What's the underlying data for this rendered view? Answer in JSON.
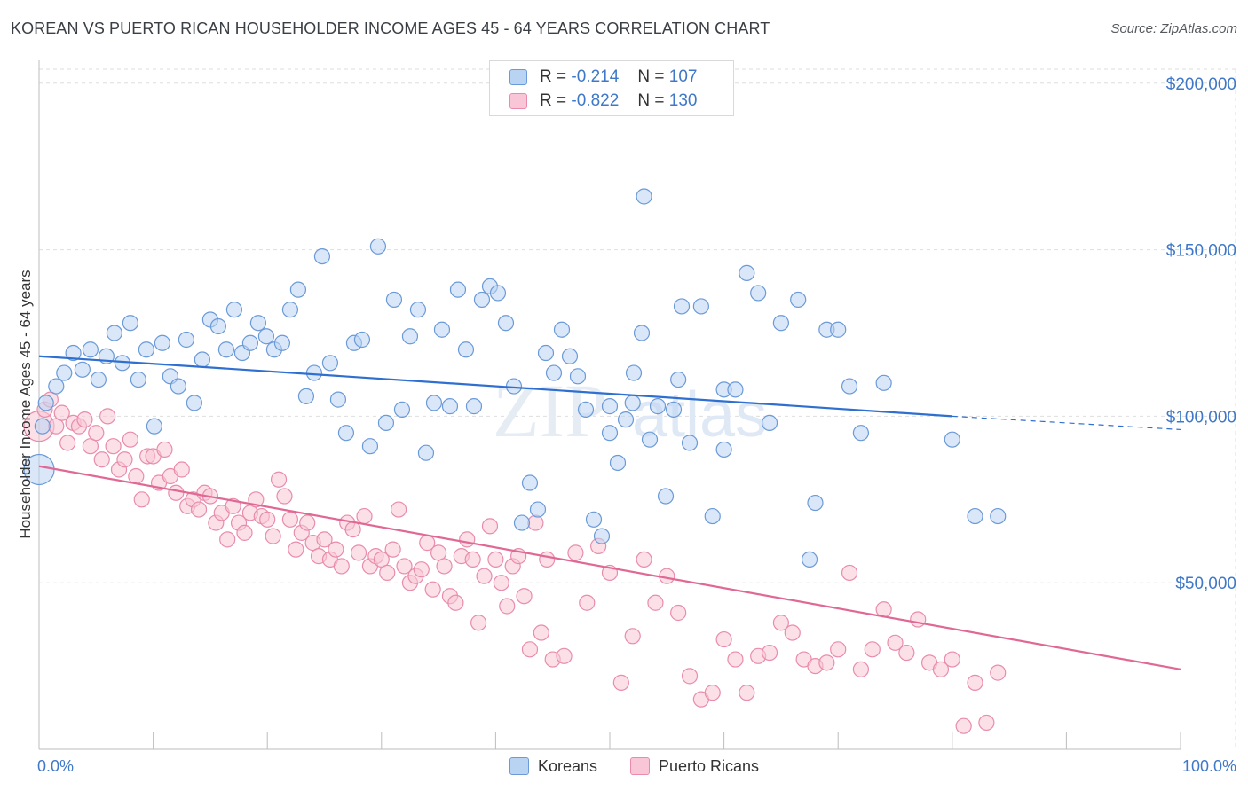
{
  "title": "KOREAN VS PUERTO RICAN HOUSEHOLDER INCOME AGES 45 - 64 YEARS CORRELATION CHART",
  "source": "Source: ZipAtlas.com",
  "legend_stats": {
    "korean": {
      "r_label": "R =",
      "r_value": "-0.214",
      "n_label": "N =",
      "n_value": "107"
    },
    "puerto_rican": {
      "r_label": "R =",
      "r_value": "-0.822",
      "n_label": "N =",
      "n_value": "130"
    }
  },
  "bottom_legend": {
    "korean": "Koreans",
    "puerto_rican": "Puerto Ricans"
  },
  "colors": {
    "blue_line": "#2f6fcf",
    "blue_fill": "#b9d3f3",
    "blue_stroke": "#6b9ad8",
    "pink_line": "#e06895",
    "pink_fill": "#f8c6d6",
    "pink_stroke": "#e98cab",
    "grid": "#dedede",
    "axis_text": "#3f78c8"
  },
  "watermark": {
    "zip": "ZIP",
    "atlas": "atlas"
  },
  "chart_data": {
    "type": "scatter",
    "title": "KOREAN VS PUERTO RICAN HOUSEHOLDER INCOME AGES 45 - 64 YEARS CORRELATION CHART",
    "xlabel": "",
    "ylabel": "Householder Income Ages 45 - 64 years",
    "xlim": [
      0,
      100
    ],
    "ylim": [
      0,
      205000
    ],
    "x_tick_labels": [
      "0.0%",
      "100.0%"
    ],
    "y_ticks": [
      50000,
      100000,
      150000,
      200000
    ],
    "y_tick_labels": [
      "$50,000",
      "$100,000",
      "$150,000",
      "$200,000"
    ],
    "series": [
      {
        "name": "Koreans",
        "trend": {
          "x0": 0,
          "y0": 118000,
          "x1": 80,
          "y1": 100000,
          "dashed_to": 100,
          "dashed_y": 96000
        },
        "points": [
          [
            0,
            84
          ],
          [
            0.3,
            97
          ],
          [
            0.6,
            104
          ],
          [
            1.5,
            109
          ],
          [
            2.2,
            113
          ],
          [
            3,
            119
          ],
          [
            3.8,
            114
          ],
          [
            4.5,
            120
          ],
          [
            5.2,
            111
          ],
          [
            5.9,
            118
          ],
          [
            6.6,
            125
          ],
          [
            7.3,
            116
          ],
          [
            8,
            128
          ],
          [
            8.7,
            111
          ],
          [
            9.4,
            120
          ],
          [
            10.1,
            97
          ],
          [
            10.8,
            122
          ],
          [
            11.5,
            112
          ],
          [
            12.2,
            109
          ],
          [
            12.9,
            123
          ],
          [
            13.6,
            104
          ],
          [
            14.3,
            117
          ],
          [
            15,
            129
          ],
          [
            15.7,
            127
          ],
          [
            16.4,
            120
          ],
          [
            17.1,
            132
          ],
          [
            17.8,
            119
          ],
          [
            18.5,
            122
          ],
          [
            19.2,
            128
          ],
          [
            19.9,
            124
          ],
          [
            20.6,
            120
          ],
          [
            21.3,
            122
          ],
          [
            22,
            132
          ],
          [
            22.7,
            138
          ],
          [
            23.4,
            106
          ],
          [
            24.1,
            113
          ],
          [
            24.8,
            148
          ],
          [
            25.5,
            116
          ],
          [
            26.2,
            105
          ],
          [
            26.9,
            95
          ],
          [
            27.6,
            122
          ],
          [
            28.3,
            123
          ],
          [
            29,
            91
          ],
          [
            29.7,
            151
          ],
          [
            30.4,
            98
          ],
          [
            31.1,
            135
          ],
          [
            31.8,
            102
          ],
          [
            32.5,
            124
          ],
          [
            33.2,
            132
          ],
          [
            33.9,
            89
          ],
          [
            34.6,
            104
          ],
          [
            35.3,
            126
          ],
          [
            36,
            103
          ],
          [
            36.7,
            138
          ],
          [
            37.4,
            120
          ],
          [
            38.1,
            103
          ],
          [
            38.8,
            135
          ],
          [
            39.5,
            139
          ],
          [
            40.2,
            137
          ],
          [
            40.9,
            128
          ],
          [
            41.6,
            109
          ],
          [
            42.3,
            68
          ],
          [
            43,
            80
          ],
          [
            43.7,
            72
          ],
          [
            44.4,
            119
          ],
          [
            45.1,
            113
          ],
          [
            45.8,
            126
          ],
          [
            46.5,
            118
          ],
          [
            47.2,
            112
          ],
          [
            47.9,
            102
          ],
          [
            48.6,
            69
          ],
          [
            49.3,
            64
          ],
          [
            50,
            95
          ],
          [
            50.7,
            86
          ],
          [
            51.4,
            99
          ],
          [
            52.1,
            113
          ],
          [
            52.8,
            125
          ],
          [
            53.5,
            93
          ],
          [
            54.2,
            103
          ],
          [
            54.9,
            76
          ],
          [
            55.6,
            102
          ],
          [
            56.3,
            133
          ],
          [
            57,
            92
          ],
          [
            58,
            133
          ],
          [
            59,
            70
          ],
          [
            60,
            108
          ],
          [
            61,
            108
          ],
          [
            62,
            143
          ],
          [
            63,
            137
          ],
          [
            64,
            98
          ],
          [
            65,
            128
          ],
          [
            66.5,
            135
          ],
          [
            67.5,
            57
          ],
          [
            68,
            74
          ],
          [
            69,
            126
          ],
          [
            70,
            126
          ],
          [
            71,
            109
          ],
          [
            72,
            95
          ],
          [
            74,
            110
          ],
          [
            80,
            93
          ],
          [
            82,
            70
          ],
          [
            84,
            70
          ],
          [
            50,
            103
          ],
          [
            52,
            104
          ],
          [
            53,
            166
          ],
          [
            56,
            111
          ],
          [
            60,
            90
          ]
        ]
      },
      {
        "name": "Puerto Ricans",
        "trend": {
          "x0": 0,
          "y0": 85000,
          "x1": 100,
          "y1": 24000
        },
        "points": [
          [
            0,
            97
          ],
          [
            0.5,
            102
          ],
          [
            1,
            105
          ],
          [
            1.5,
            97
          ],
          [
            2,
            101
          ],
          [
            2.5,
            92
          ],
          [
            3,
            98
          ],
          [
            3.5,
            97
          ],
          [
            4,
            99
          ],
          [
            4.5,
            91
          ],
          [
            5,
            95
          ],
          [
            5.5,
            87
          ],
          [
            6,
            100
          ],
          [
            6.5,
            91
          ],
          [
            7,
            84
          ],
          [
            7.5,
            87
          ],
          [
            8,
            93
          ],
          [
            8.5,
            82
          ],
          [
            9,
            75
          ],
          [
            9.5,
            88
          ],
          [
            10,
            88
          ],
          [
            10.5,
            80
          ],
          [
            11,
            90
          ],
          [
            11.5,
            82
          ],
          [
            12,
            77
          ],
          [
            12.5,
            84
          ],
          [
            13,
            73
          ],
          [
            13.5,
            75
          ],
          [
            14,
            72
          ],
          [
            14.5,
            77
          ],
          [
            15,
            76
          ],
          [
            15.5,
            68
          ],
          [
            16,
            71
          ],
          [
            16.5,
            63
          ],
          [
            17,
            73
          ],
          [
            17.5,
            68
          ],
          [
            18,
            65
          ],
          [
            18.5,
            71
          ],
          [
            19,
            75
          ],
          [
            19.5,
            70
          ],
          [
            20,
            69
          ],
          [
            20.5,
            64
          ],
          [
            21,
            81
          ],
          [
            21.5,
            76
          ],
          [
            22,
            69
          ],
          [
            22.5,
            60
          ],
          [
            23,
            65
          ],
          [
            23.5,
            68
          ],
          [
            24,
            62
          ],
          [
            24.5,
            58
          ],
          [
            25,
            63
          ],
          [
            25.5,
            57
          ],
          [
            26,
            60
          ],
          [
            26.5,
            55
          ],
          [
            27,
            68
          ],
          [
            27.5,
            66
          ],
          [
            28,
            59
          ],
          [
            28.5,
            70
          ],
          [
            29,
            55
          ],
          [
            29.5,
            58
          ],
          [
            30,
            57
          ],
          [
            30.5,
            53
          ],
          [
            31,
            60
          ],
          [
            31.5,
            72
          ],
          [
            32,
            55
          ],
          [
            32.5,
            50
          ],
          [
            33,
            52
          ],
          [
            33.5,
            54
          ],
          [
            34,
            62
          ],
          [
            34.5,
            48
          ],
          [
            35,
            59
          ],
          [
            35.5,
            55
          ],
          [
            36,
            46
          ],
          [
            36.5,
            44
          ],
          [
            37,
            58
          ],
          [
            37.5,
            63
          ],
          [
            38,
            57
          ],
          [
            38.5,
            38
          ],
          [
            39,
            52
          ],
          [
            39.5,
            67
          ],
          [
            40,
            57
          ],
          [
            40.5,
            50
          ],
          [
            41,
            43
          ],
          [
            41.5,
            55
          ],
          [
            42,
            58
          ],
          [
            42.5,
            46
          ],
          [
            43,
            30
          ],
          [
            43.5,
            68
          ],
          [
            44,
            35
          ],
          [
            44.5,
            57
          ],
          [
            45,
            27
          ],
          [
            46,
            28
          ],
          [
            47,
            59
          ],
          [
            48,
            44
          ],
          [
            49,
            61
          ],
          [
            50,
            53
          ],
          [
            51,
            20
          ],
          [
            52,
            34
          ],
          [
            53,
            57
          ],
          [
            54,
            44
          ],
          [
            55,
            52
          ],
          [
            56,
            41
          ],
          [
            57,
            22
          ],
          [
            58,
            15
          ],
          [
            59,
            17
          ],
          [
            60,
            33
          ],
          [
            61,
            27
          ],
          [
            62,
            17
          ],
          [
            63,
            28
          ],
          [
            64,
            29
          ],
          [
            65,
            38
          ],
          [
            66,
            35
          ],
          [
            67,
            27
          ],
          [
            68,
            25
          ],
          [
            69,
            26
          ],
          [
            70,
            30
          ],
          [
            71,
            53
          ],
          [
            72,
            24
          ],
          [
            73,
            30
          ],
          [
            74,
            42
          ],
          [
            75,
            32
          ],
          [
            76,
            29
          ],
          [
            77,
            39
          ],
          [
            78,
            26
          ],
          [
            79,
            24
          ],
          [
            80,
            27
          ],
          [
            81,
            7
          ],
          [
            82,
            20
          ],
          [
            83,
            8
          ],
          [
            84,
            23
          ]
        ]
      }
    ]
  }
}
